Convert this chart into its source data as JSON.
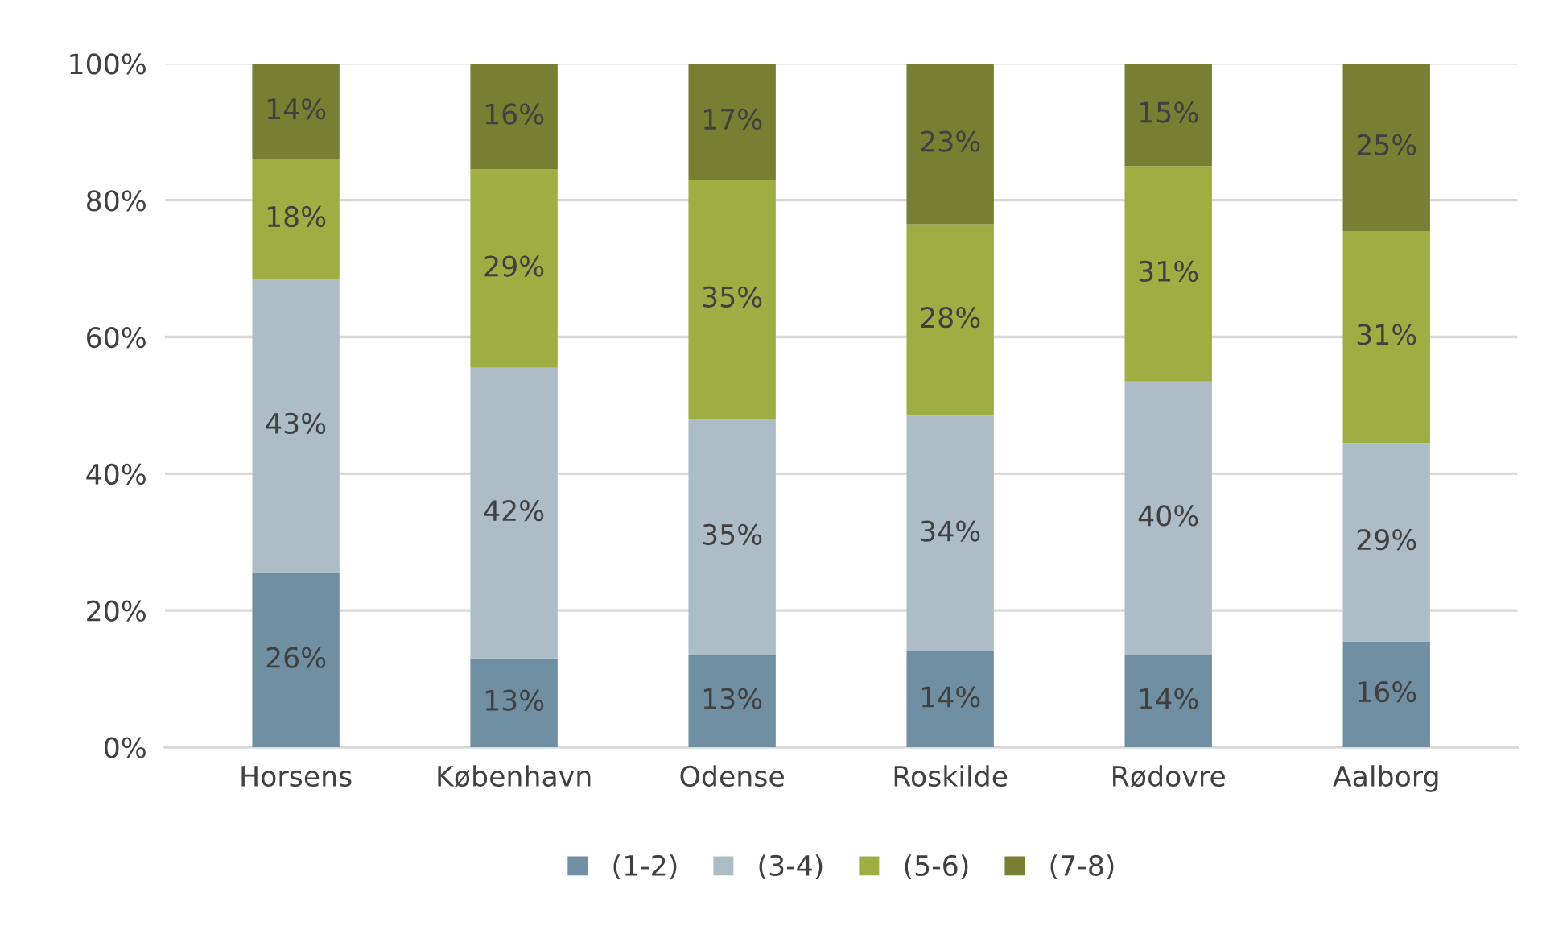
{
  "chart_data": {
    "type": "bar",
    "stacked": true,
    "categories": [
      "Horsens",
      "København",
      "Odense",
      "Roskilde",
      "Rødovre",
      "Aalborg"
    ],
    "series": [
      {
        "name": "(1-2)",
        "color": "#718fa2",
        "values": [
          25.5,
          13,
          13.5,
          14,
          13.5,
          15.5
        ],
        "value_labels": [
          "26%",
          "13%",
          "13%",
          "14%",
          "14%",
          "16%"
        ]
      },
      {
        "name": "(3-4)",
        "color": "#adbdc7",
        "values": [
          43,
          42.5,
          34.5,
          34.5,
          40,
          29
        ],
        "value_labels": [
          "43%",
          "42%",
          "35%",
          "34%",
          "40%",
          "29%"
        ]
      },
      {
        "name": "(5-6)",
        "color": "#9fae43",
        "values": [
          17.5,
          29,
          35,
          28,
          31.5,
          31
        ],
        "value_labels": [
          "18%",
          "29%",
          "35%",
          "28%",
          "31%",
          "31%"
        ]
      },
      {
        "name": "(7-8)",
        "color": "#767f32",
        "values": [
          14,
          15.5,
          17,
          23.5,
          15,
          24.5
        ],
        "value_labels": [
          "14%",
          "16%",
          "17%",
          "23%",
          "15%",
          "25%"
        ]
      }
    ],
    "ylim": [
      0,
      100
    ],
    "yticks": [
      {
        "value": 0,
        "label": "0%"
      },
      {
        "value": 20,
        "label": "20%"
      },
      {
        "value": 40,
        "label": "40%"
      },
      {
        "value": 60,
        "label": "60%"
      },
      {
        "value": 80,
        "label": "80%"
      },
      {
        "value": 100,
        "label": "100%"
      }
    ],
    "grid": "y",
    "legend": "bottom"
  }
}
